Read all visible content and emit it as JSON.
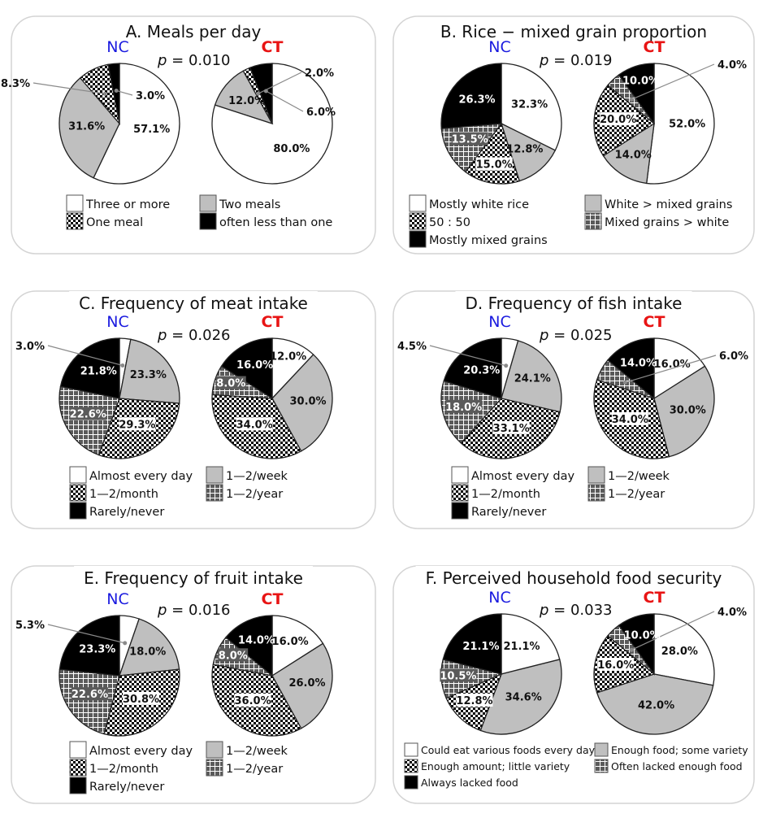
{
  "chart_data": [
    {
      "type": "pie",
      "panel": "A",
      "title": "A. Meals per day",
      "p_value": "0.010",
      "legend": [
        "Three or more",
        "Two meals",
        "One meal",
        "often less than one"
      ],
      "fills": [
        "white",
        "gray",
        "check",
        "black"
      ],
      "groups": [
        {
          "name": "NC",
          "values": [
            57.1,
            31.6,
            8.3,
            3.0
          ],
          "labels": [
            "57.1%",
            "31.6%",
            "8.3%",
            "3.0%"
          ]
        },
        {
          "name": "CT",
          "values": [
            80.0,
            12.0,
            2.0,
            6.0
          ],
          "labels": [
            "80.0%",
            "12.0%",
            "2.0%",
            "6.0%"
          ]
        }
      ]
    },
    {
      "type": "pie",
      "panel": "B",
      "title": "B. Rice − mixed grain proportion",
      "p_value": "0.019",
      "legend": [
        "Mostly white rice",
        "White > mixed grains",
        "50 : 50",
        "Mixed grains > white",
        "Mostly mixed grains"
      ],
      "fills": [
        "white",
        "gray",
        "check",
        "grid",
        "black"
      ],
      "groups": [
        {
          "name": "NC",
          "values": [
            32.3,
            12.8,
            15.0,
            13.5,
            26.3
          ],
          "labels": [
            "32.3%",
            "12.8%",
            "15.0%",
            "13.5%",
            "26.3%"
          ]
        },
        {
          "name": "CT",
          "values": [
            52.0,
            14.0,
            20.0,
            4.0,
            10.0
          ],
          "labels": [
            "52.0%",
            "14.0%",
            "20.0%",
            "4.0%",
            "10.0%"
          ]
        }
      ]
    },
    {
      "type": "pie",
      "panel": "C",
      "title": "C. Frequency of meat intake",
      "p_value": "0.026",
      "legend": [
        "Almost every day",
        "1—2/week",
        "1—2/month",
        "1—2/year",
        "Rarely/never"
      ],
      "fills": [
        "white",
        "gray",
        "check",
        "grid",
        "black"
      ],
      "groups": [
        {
          "name": "NC",
          "values": [
            3.0,
            23.3,
            29.3,
            22.6,
            21.8
          ],
          "labels": [
            "3.0%",
            "23.3%",
            "29.3%",
            "22.6%",
            "21.8%"
          ]
        },
        {
          "name": "CT",
          "values": [
            12.0,
            30.0,
            34.0,
            8.0,
            16.0
          ],
          "labels": [
            "12.0%",
            "30.0%",
            "34.0%",
            "8.0%",
            "16.0%"
          ]
        }
      ]
    },
    {
      "type": "pie",
      "panel": "D",
      "title": "D. Frequency of fish intake",
      "p_value": "0.025",
      "legend": [
        "Almost every day",
        "1—2/week",
        "1—2/month",
        "1—2/year",
        "Rarely/never"
      ],
      "fills": [
        "white",
        "gray",
        "check",
        "grid",
        "black"
      ],
      "groups": [
        {
          "name": "NC",
          "values": [
            4.5,
            24.1,
            33.1,
            18.0,
            20.3
          ],
          "labels": [
            "4.5%",
            "24.1%",
            "33.1%",
            "18.0%",
            "20.3%"
          ]
        },
        {
          "name": "CT",
          "values": [
            16.0,
            30.0,
            34.0,
            6.0,
            14.0
          ],
          "labels": [
            "16.0%",
            "30.0%",
            "34.0%",
            "6.0%",
            "14.0%"
          ]
        }
      ]
    },
    {
      "type": "pie",
      "panel": "E",
      "title": "E. Frequency of fruit intake",
      "p_value": "0.016",
      "legend": [
        "Almost every day",
        "1—2/week",
        "1—2/month",
        "1—2/year",
        "Rarely/never"
      ],
      "fills": [
        "white",
        "gray",
        "check",
        "grid",
        "black"
      ],
      "groups": [
        {
          "name": "NC",
          "values": [
            5.3,
            18.0,
            30.8,
            22.6,
            23.3
          ],
          "labels": [
            "5.3%",
            "18.0%",
            "30.8%",
            "22.6%",
            "23.3%"
          ]
        },
        {
          "name": "CT",
          "values": [
            16.0,
            26.0,
            36.0,
            8.0,
            14.0
          ],
          "labels": [
            "16.0%",
            "26.0%",
            "36.0%",
            "8.0%",
            "14.0%"
          ]
        }
      ]
    },
    {
      "type": "pie",
      "panel": "F",
      "title": "F. Perceived household food security",
      "p_value": "0.033",
      "legend": [
        "Could eat various foods every day",
        "Enough food; some variety",
        "Enough amount; little variety",
        "Often lacked enough food",
        "Always lacked food"
      ],
      "fills": [
        "white",
        "gray",
        "check",
        "grid",
        "black"
      ],
      "groups": [
        {
          "name": "NC",
          "values": [
            21.1,
            34.6,
            12.8,
            10.5,
            21.1
          ],
          "labels": [
            "21.1%",
            "34.6%",
            "12.8%",
            "10.5%",
            "21.1%"
          ]
        },
        {
          "name": "CT",
          "values": [
            28.0,
            42.0,
            16.0,
            4.0,
            10.0
          ],
          "labels": [
            "28.0%",
            "42.0%",
            "16.0%",
            "4.0%",
            "10.0%"
          ]
        }
      ]
    }
  ],
  "p_prefix": "p",
  "p_equals": "=",
  "colors": {
    "nc": "#1a1adf",
    "ct": "#e81414",
    "gray_fill": "#bfbfbf",
    "grid_fill": "#5a5a5a",
    "black_fill": "#000000"
  }
}
